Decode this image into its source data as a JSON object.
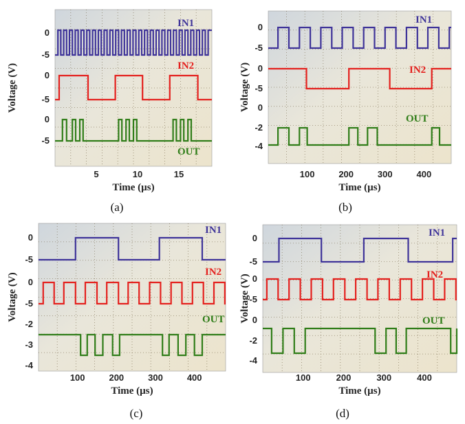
{
  "colors": {
    "in1": "#3e3399",
    "in2": "#e4201d",
    "out": "#2f7d18",
    "axis_text": "#222222",
    "grid": "#6a5a3a"
  },
  "captions": [
    "(a)",
    "(b)",
    "(c)",
    "(d)"
  ],
  "chart_data": [
    {
      "type": "line",
      "panel": "a",
      "title": "",
      "xlabel": "Time (µs)",
      "ylabel": "Voltage (V)",
      "xlim": [
        0,
        19
      ],
      "xticks": [
        5,
        10,
        15
      ],
      "yticks": [
        {
          "label": "0",
          "series": "IN1"
        },
        {
          "label": "-5",
          "series": "IN1"
        },
        {
          "label": "0",
          "series": "IN2"
        },
        {
          "label": "-5",
          "series": "IN2"
        },
        {
          "label": "0",
          "series": "OUT"
        },
        {
          "label": "-5",
          "series": "OUT"
        }
      ],
      "series": [
        {
          "name": "IN1",
          "kind": "square",
          "high": 0,
          "low": -5,
          "start_low": true,
          "transitions": [
            0.35,
            0.7,
            1.05,
            1.4,
            1.75,
            2.1,
            2.45,
            2.8,
            3.15,
            3.5,
            3.85,
            4.2,
            4.55,
            4.9,
            5.25,
            5.6,
            5.95,
            6.3,
            6.65,
            7.0,
            7.35,
            7.7,
            8.05,
            8.4,
            8.75,
            9.1,
            9.45,
            9.8,
            10.15,
            10.5,
            10.85,
            11.2,
            11.55,
            11.9,
            12.25,
            12.6,
            12.95,
            13.3,
            13.65,
            14.0,
            14.35,
            14.7,
            15.05,
            15.4,
            15.75,
            16.1,
            16.45,
            16.8,
            17.15,
            17.5,
            17.85,
            18.2,
            18.55
          ]
        },
        {
          "name": "IN2",
          "kind": "square",
          "high": 0,
          "low": -5,
          "start_low": true,
          "transitions": [
            0.5,
            4.0,
            7.3,
            10.6,
            13.9,
            17.3
          ]
        },
        {
          "name": "OUT",
          "kind": "square",
          "high": 0,
          "low": -5,
          "start_low": true,
          "transitions": [
            0.9,
            1.4,
            2.1,
            2.5,
            3.0,
            3.4,
            7.7,
            8.1,
            8.6,
            9.0,
            9.5,
            9.9,
            14.3,
            14.7,
            15.2,
            15.6,
            16.1,
            16.5
          ]
        }
      ]
    },
    {
      "type": "line",
      "panel": "b",
      "title": "",
      "xlabel": "Time (µs)",
      "ylabel": "Voltage (V)",
      "xlim": [
        0,
        470
      ],
      "xticks": [
        100,
        200,
        300,
        400
      ],
      "yticks": [
        {
          "label": "0",
          "series": "IN1"
        },
        {
          "label": "-5",
          "series": "IN1"
        },
        {
          "label": "0",
          "series": "IN2"
        },
        {
          "label": "-5",
          "series": "IN2"
        },
        {
          "label": "0",
          "series": "OUT"
        },
        {
          "label": "-2",
          "series": "OUT"
        },
        {
          "label": "-4",
          "series": "OUT"
        }
      ],
      "series": [
        {
          "name": "IN1",
          "kind": "square",
          "high": 0,
          "low": -5,
          "start_low": true,
          "transitions": [
            25,
            53,
            80,
            108,
            135,
            163,
            190,
            218,
            245,
            273,
            300,
            328,
            355,
            383,
            410,
            438,
            465
          ]
        },
        {
          "name": "IN2",
          "kind": "square",
          "high": 0,
          "low": -5,
          "start_low": false,
          "transitions": [
            98,
            207,
            312,
            420
          ]
        },
        {
          "name": "OUT",
          "kind": "square",
          "high": -2,
          "low": -4,
          "start_low": true,
          "transitions": [
            25,
            53,
            80,
            100,
            207,
            230,
            255,
            280,
            420,
            440
          ]
        }
      ]
    },
    {
      "type": "line",
      "panel": "c",
      "title": "",
      "xlabel": "Time (µs)",
      "ylabel": "Voltage (V)",
      "xlim": [
        0,
        480
      ],
      "xticks": [
        100,
        200,
        300,
        400
      ],
      "yticks": [
        {
          "label": "0",
          "series": "IN1"
        },
        {
          "label": "-5",
          "series": "IN1"
        },
        {
          "label": "0",
          "series": "IN2"
        },
        {
          "label": "-5",
          "series": "IN2"
        },
        {
          "label": "-2",
          "series": "OUT"
        },
        {
          "label": "-3",
          "series": "OUT"
        },
        {
          "label": "-4",
          "series": "OUT"
        }
      ],
      "series": [
        {
          "name": "IN1",
          "kind": "square",
          "high": 0,
          "low": -5,
          "start_low": true,
          "transitions": [
            95,
            205,
            310,
            420
          ]
        },
        {
          "name": "IN2",
          "kind": "square",
          "high": 0,
          "low": -5,
          "start_low": true,
          "transitions": [
            12,
            40,
            65,
            95,
            120,
            150,
            175,
            205,
            230,
            258,
            285,
            313,
            340,
            368,
            395,
            423,
            450,
            478
          ]
        },
        {
          "name": "OUT",
          "kind": "square",
          "high": -2.5,
          "low": -3.5,
          "start_low": false,
          "transitions": [
            108,
            125,
            145,
            165,
            190,
            208,
            318,
            335,
            358,
            378,
            400,
            420
          ]
        }
      ]
    },
    {
      "type": "line",
      "panel": "d",
      "title": "",
      "xlabel": "Time (µs)",
      "ylabel": "Voltage (V)",
      "xlim": [
        0,
        480
      ],
      "xticks": [
        100,
        200,
        300,
        400
      ],
      "yticks": [
        {
          "label": "0",
          "series": "IN1"
        },
        {
          "label": "-5",
          "series": "IN1"
        },
        {
          "label": "0",
          "series": "IN2"
        },
        {
          "label": "-5",
          "series": "IN2"
        },
        {
          "label": "0",
          "series": "OUT"
        },
        {
          "label": "-2",
          "series": "OUT"
        },
        {
          "label": "-4",
          "series": "OUT"
        }
      ],
      "series": [
        {
          "name": "IN1",
          "kind": "square",
          "high": 0,
          "low": -5,
          "start_low": true,
          "transitions": [
            40,
            145,
            250,
            360,
            470
          ]
        },
        {
          "name": "IN2",
          "kind": "square",
          "high": 0,
          "low": -5,
          "start_low": true,
          "transitions": [
            10,
            38,
            65,
            93,
            120,
            148,
            175,
            203,
            230,
            258,
            285,
            313,
            340,
            368,
            395,
            423,
            450,
            478
          ]
        },
        {
          "name": "OUT",
          "kind": "square",
          "high": -1,
          "low": -3.5,
          "start_low": false,
          "transitions": [
            22,
            50,
            78,
            105,
            278,
            305,
            330,
            355,
            465,
            480
          ]
        }
      ]
    }
  ]
}
